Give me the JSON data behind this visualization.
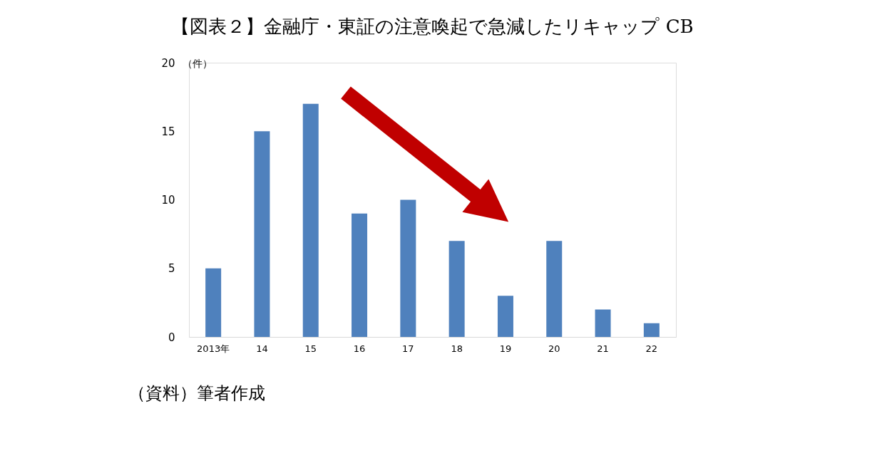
{
  "chart_data": {
    "type": "bar",
    "title": "【図表２】金融庁・東証の注意喚起で急減したリキャップ CB",
    "ylabel": "（件）",
    "categories": [
      "2013年",
      "14",
      "15",
      "16",
      "17",
      "18",
      "19",
      "20",
      "21",
      "22"
    ],
    "values": [
      5,
      15,
      17,
      9,
      10,
      7,
      3,
      7,
      2,
      1
    ],
    "color": "#4f81bd",
    "ylim": [
      0,
      20
    ],
    "yticks": [
      0,
      5,
      10,
      15,
      20
    ],
    "grid": false,
    "annotations": [
      "（資料）筆者作成"
    ]
  }
}
